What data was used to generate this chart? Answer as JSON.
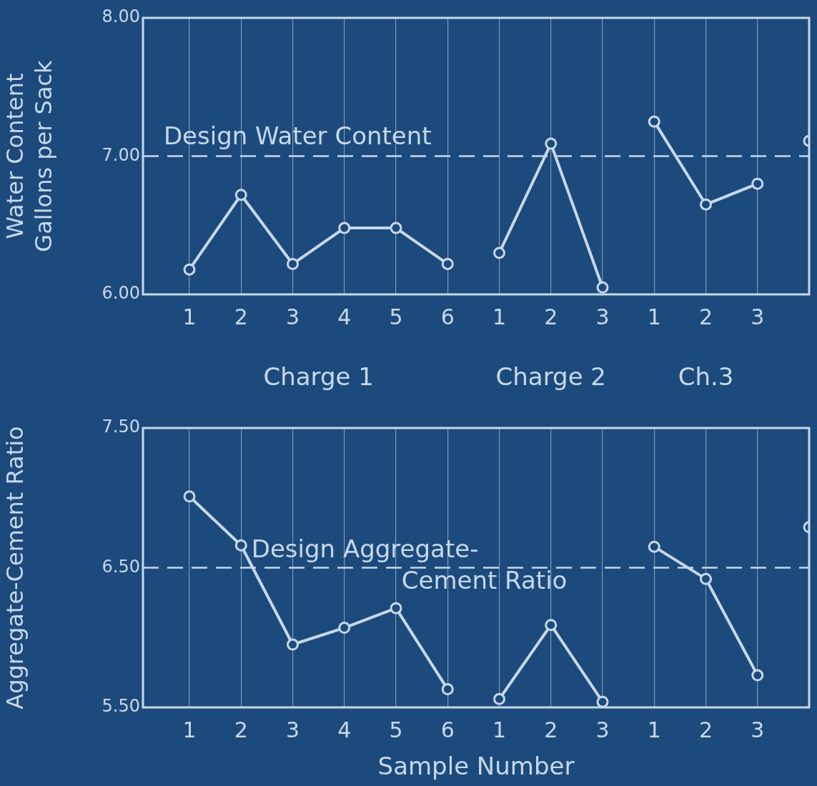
{
  "chart_data": [
    {
      "type": "line",
      "ylabel": "Water Content\nGallons per Sack",
      "categories": [
        "1",
        "2",
        "3",
        "4",
        "5",
        "6",
        "1",
        "2",
        "3",
        "1",
        "2",
        "3",
        null
      ],
      "series": [
        {
          "color": "#c6d8ea",
          "values": [
            6.18,
            6.72,
            6.22,
            6.48,
            6.48,
            6.22,
            null,
            null,
            null,
            null,
            null,
            null,
            null
          ]
        },
        {
          "color": "#c6d8ea",
          "values": [
            null,
            null,
            null,
            null,
            null,
            null,
            6.3,
            7.09,
            6.05,
            null,
            null,
            null,
            null
          ]
        },
        {
          "color": "#c6d8ea",
          "values": [
            null,
            null,
            null,
            null,
            null,
            null,
            null,
            null,
            null,
            7.25,
            6.65,
            6.8,
            null
          ]
        },
        {
          "color": "#c6d8ea",
          "values": [
            null,
            null,
            null,
            null,
            null,
            null,
            null,
            null,
            null,
            null,
            null,
            null,
            7.11
          ]
        }
      ],
      "ylim": [
        6,
        8
      ],
      "yticks": [
        {
          "value": 6,
          "label": "6.00"
        },
        {
          "value": 7,
          "label": "7.00"
        },
        {
          "value": 8,
          "label": "8.00"
        }
      ],
      "grid": "x",
      "marker": "circle",
      "line_style": "solid",
      "legend": false,
      "ref_lines": [
        {
          "axis": "y",
          "value": 7,
          "label": "Design Water Content",
          "line_style": "dashed",
          "color": "#c6d8ea"
        }
      ],
      "annotations": [
        "Charge 1",
        "Charge 2",
        "Ch.3"
      ]
    },
    {
      "type": "line",
      "ylabel": "Aggregate-Cement Ratio",
      "xlabel": "Sample Number",
      "categories": [
        "1",
        "2",
        "3",
        "4",
        "5",
        "6",
        "1",
        "2",
        "3",
        "1",
        "2",
        "3",
        null
      ],
      "series": [
        {
          "color": "#c6d8ea",
          "values": [
            7.01,
            6.66,
            5.95,
            6.07,
            6.21,
            5.63,
            null,
            null,
            null,
            null,
            null,
            null,
            null
          ]
        },
        {
          "color": "#c6d8ea",
          "values": [
            null,
            null,
            null,
            null,
            null,
            null,
            5.56,
            6.09,
            5.54,
            null,
            null,
            null,
            null
          ]
        },
        {
          "color": "#c6d8ea",
          "values": [
            null,
            null,
            null,
            null,
            null,
            null,
            null,
            null,
            null,
            6.65,
            6.42,
            5.73,
            null
          ]
        },
        {
          "color": "#c6d8ea",
          "values": [
            null,
            null,
            null,
            null,
            null,
            null,
            null,
            null,
            null,
            null,
            null,
            null,
            6.79
          ]
        }
      ],
      "ylim": [
        5.5,
        7.5
      ],
      "yticks": [
        {
          "value": 5.5,
          "label": "5.50"
        },
        {
          "value": 6.5,
          "label": "6.50"
        },
        {
          "value": 7.5,
          "label": "7.50"
        }
      ],
      "grid": "x",
      "marker": "circle",
      "line_style": "solid",
      "legend": false,
      "ref_lines": [
        {
          "axis": "y",
          "value": 6.5,
          "label": "Design Aggregate-Cement Ratio",
          "line_style": "dashed",
          "color": "#c6d8ea"
        }
      ]
    }
  ]
}
